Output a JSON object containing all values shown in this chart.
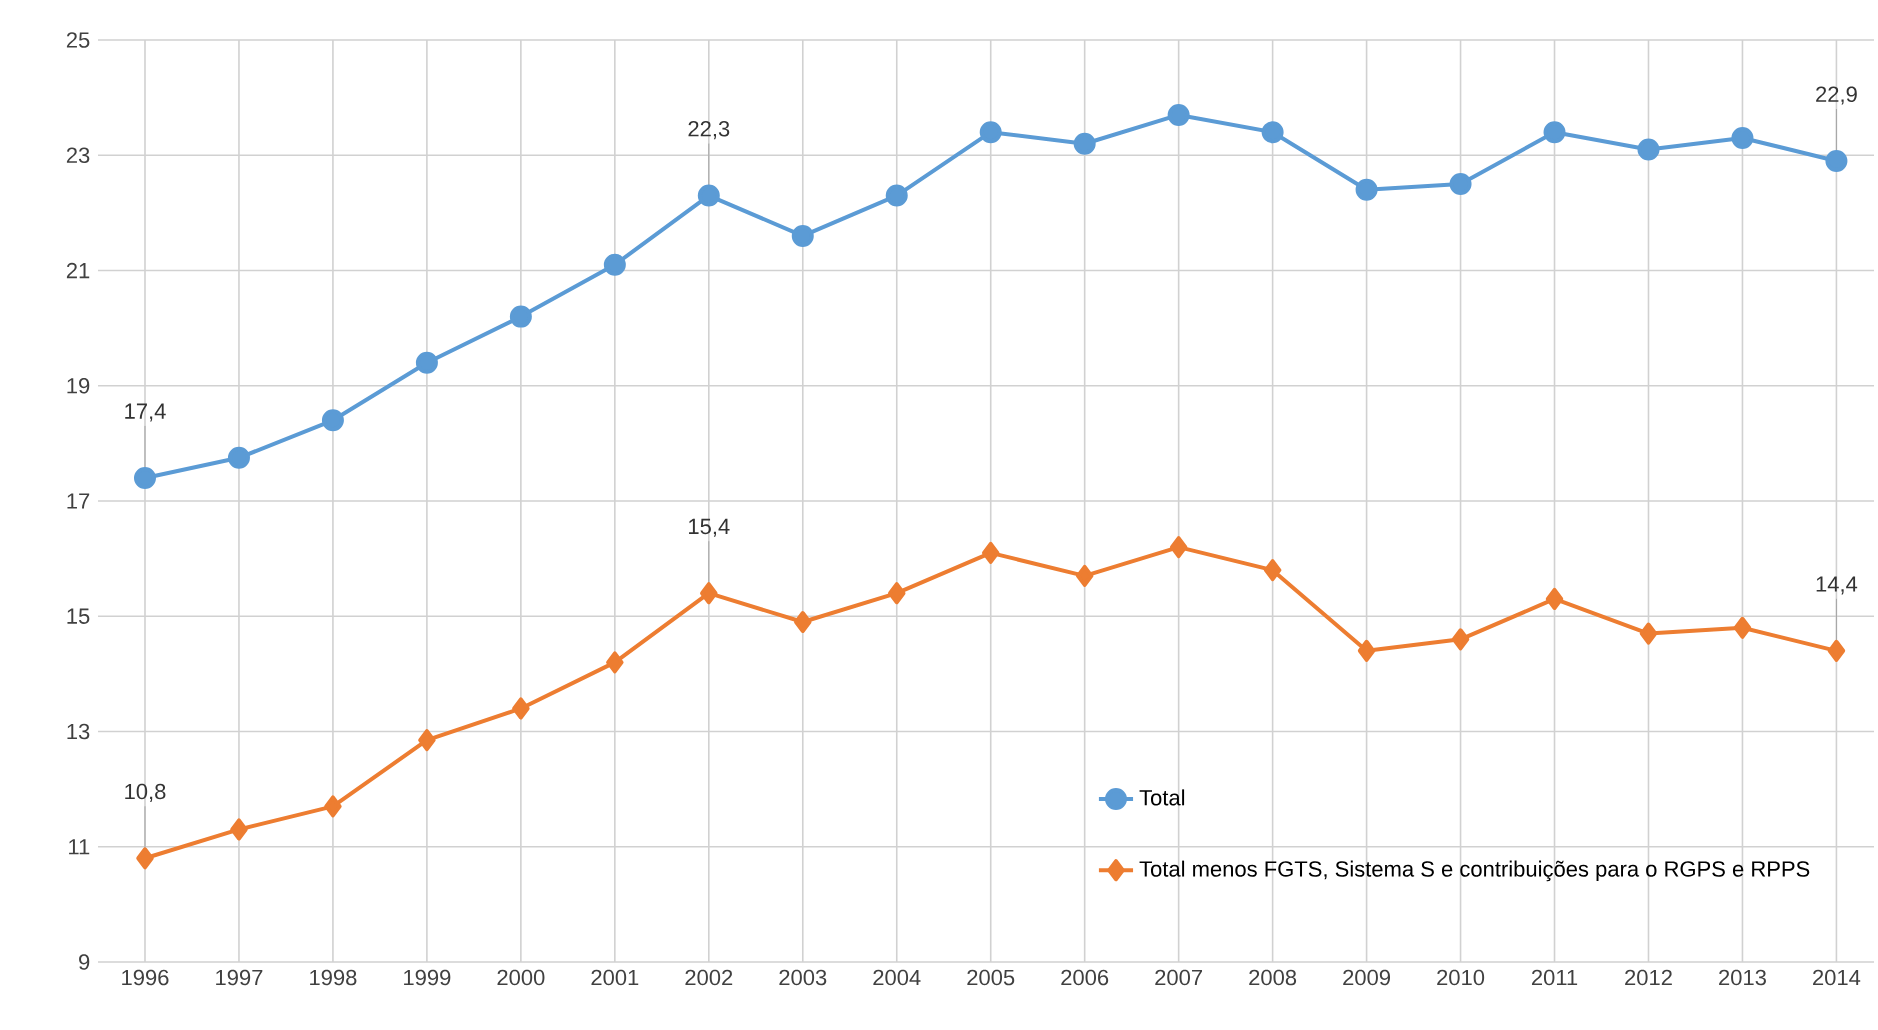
{
  "chart_data": {
    "type": "line",
    "categories": [
      "1996",
      "1997",
      "1998",
      "1999",
      "2000",
      "2001",
      "2002",
      "2003",
      "2004",
      "2005",
      "2006",
      "2007",
      "2008",
      "2009",
      "2010",
      "2011",
      "2012",
      "2013",
      "2014"
    ],
    "series": [
      {
        "name": "Total",
        "color": "#5b9bd5",
        "marker": "circle",
        "values": [
          17.4,
          17.75,
          18.4,
          19.4,
          20.2,
          21.1,
          22.3,
          21.6,
          22.3,
          23.4,
          23.2,
          23.7,
          23.4,
          22.4,
          22.5,
          23.4,
          23.1,
          23.3,
          22.9
        ],
        "value_labels": [
          "17,4",
          null,
          null,
          null,
          null,
          null,
          "22,3",
          null,
          null,
          null,
          null,
          null,
          null,
          null,
          null,
          null,
          null,
          null,
          "22,9"
        ]
      },
      {
        "name": "Total menos FGTS, Sistema S e contribuições para o RGPS e RPPS",
        "color": "#ed7d31",
        "marker": "diamond",
        "values": [
          10.8,
          11.3,
          11.7,
          12.85,
          13.4,
          14.2,
          15.4,
          14.9,
          15.4,
          16.1,
          15.7,
          16.2,
          15.8,
          14.4,
          14.6,
          15.3,
          14.7,
          14.8,
          14.4
        ],
        "value_labels": [
          "10,8",
          null,
          null,
          null,
          null,
          null,
          "15,4",
          null,
          null,
          null,
          null,
          null,
          null,
          null,
          null,
          null,
          null,
          null,
          "14,4"
        ]
      }
    ],
    "ylim": [
      9,
      25
    ],
    "yticks": [
      9,
      11,
      13,
      15,
      17,
      19,
      21,
      23,
      25
    ],
    "grid": true,
    "legend": "bottom right"
  }
}
